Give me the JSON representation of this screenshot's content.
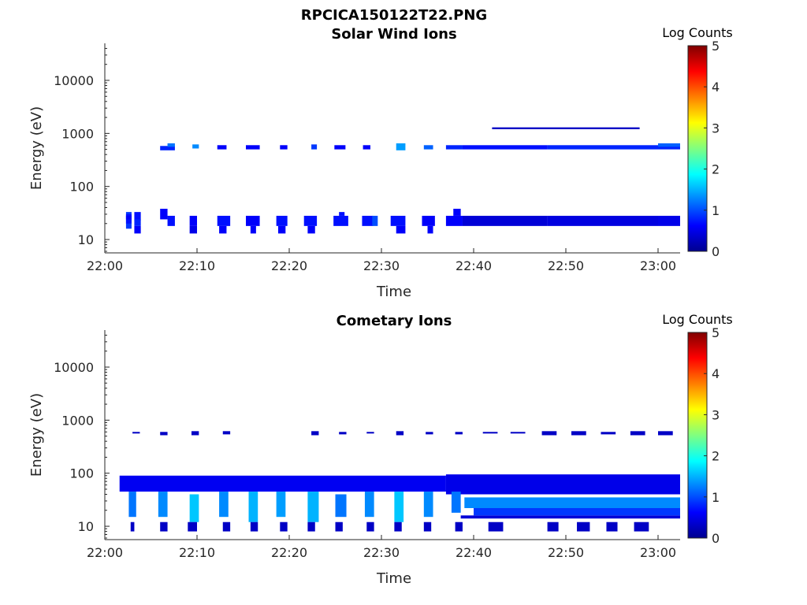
{
  "figure_title": "RPCICA150122T22.PNG",
  "chart_data": [
    {
      "type": "heatmap",
      "title": "Solar Wind Ions",
      "xlabel": "Time",
      "ylabel": "Energy (eV)",
      "yscale": "log",
      "ylim": [
        6,
        45000
      ],
      "xlim": [
        "22:00",
        "23:02"
      ],
      "xticks": [
        "22:00",
        "22:10",
        "22:20",
        "22:30",
        "22:40",
        "22:50",
        "23:00"
      ],
      "yticks": [
        "10",
        "100",
        "1000",
        "10000"
      ],
      "colorbar": {
        "label": "Log Counts",
        "min": 0,
        "max": 5,
        "ticks": [
          "0",
          "1",
          "2",
          "3",
          "4",
          "5"
        ],
        "colormap": "jet"
      },
      "cells": [
        [
          2.3,
          2.9,
          16,
          33,
          0.9
        ],
        [
          2.3,
          2.9,
          20,
          30,
          0.7
        ],
        [
          2.3,
          2.9,
          24,
          28,
          0.6
        ],
        [
          3.2,
          3.9,
          23,
          33,
          0.7
        ],
        [
          3.2,
          3.9,
          13,
          18,
          0.6
        ],
        [
          3.2,
          3.9,
          18,
          24,
          0.8
        ],
        [
          6.0,
          6.8,
          24,
          38,
          0.6
        ],
        [
          6.8,
          7.6,
          18,
          28,
          0.7
        ],
        [
          6.0,
          7.6,
          480,
          580,
          0.8
        ],
        [
          6.8,
          7.6,
          560,
          650,
          1.2
        ],
        [
          9.2,
          10.0,
          18,
          28,
          0.6
        ],
        [
          9.2,
          10.0,
          13,
          18,
          0.5
        ],
        [
          9.5,
          10.2,
          520,
          620,
          1.3
        ],
        [
          12.2,
          13.6,
          18,
          28,
          0.7
        ],
        [
          12.4,
          13.2,
          13,
          18,
          0.6
        ],
        [
          12.2,
          13.2,
          500,
          600,
          0.6
        ],
        [
          15.3,
          16.8,
          18,
          28,
          0.6
        ],
        [
          15.8,
          16.4,
          13,
          18,
          0.6
        ],
        [
          15.3,
          16.8,
          500,
          600,
          0.6
        ],
        [
          18.6,
          19.8,
          18,
          28,
          0.7
        ],
        [
          18.8,
          19.6,
          13,
          18,
          0.6
        ],
        [
          19.0,
          19.8,
          500,
          600,
          0.6
        ],
        [
          21.6,
          23.0,
          18,
          28,
          0.7
        ],
        [
          22.0,
          22.8,
          13,
          18,
          0.6
        ],
        [
          22.4,
          23.0,
          500,
          620,
          0.9
        ],
        [
          24.8,
          26.4,
          18,
          28,
          0.7
        ],
        [
          25.4,
          26.0,
          28,
          33,
          0.7
        ],
        [
          24.9,
          26.1,
          500,
          600,
          0.6
        ],
        [
          27.9,
          29.1,
          18,
          28,
          0.7
        ],
        [
          28.0,
          28.8,
          500,
          600,
          0.6
        ],
        [
          29.0,
          29.6,
          18,
          28,
          1.0
        ],
        [
          31.0,
          32.6,
          18,
          28,
          0.7
        ],
        [
          31.6,
          32.6,
          13,
          18,
          0.6
        ],
        [
          31.6,
          32.6,
          480,
          650,
          1.4
        ],
        [
          34.4,
          35.8,
          18,
          28,
          0.6
        ],
        [
          35.0,
          35.6,
          13,
          18,
          0.6
        ],
        [
          34.6,
          35.6,
          500,
          600,
          1.1
        ],
        [
          37.0,
          38.8,
          18,
          28,
          0.6
        ],
        [
          37.8,
          38.6,
          28,
          38,
          0.6
        ],
        [
          37.0,
          38.8,
          500,
          600,
          0.8
        ],
        [
          38.8,
          48.0,
          18,
          28,
          0.4
        ],
        [
          48.0,
          60.0,
          18,
          28,
          0.45
        ],
        [
          60.0,
          62.5,
          18,
          28,
          0.5
        ],
        [
          38.8,
          48.0,
          500,
          600,
          0.7
        ],
        [
          48.0,
          62.5,
          500,
          600,
          0.8
        ],
        [
          60.0,
          62.5,
          560,
          650,
          1.1
        ],
        [
          42.0,
          58.0,
          1200,
          1300,
          0.3
        ]
      ]
    },
    {
      "type": "heatmap",
      "title": "Cometary Ions",
      "xlabel": "Time",
      "ylabel": "Energy (eV)",
      "yscale": "log",
      "ylim": [
        6,
        45000
      ],
      "xlim": [
        "22:00",
        "23:02"
      ],
      "xticks": [
        "22:00",
        "22:10",
        "22:20",
        "22:30",
        "22:40",
        "22:50",
        "23:00"
      ],
      "yticks": [
        "10",
        "100",
        "1000",
        "10000"
      ],
      "colorbar": {
        "label": "Log Counts",
        "min": 0,
        "max": 5,
        "ticks": [
          "0",
          "1",
          "2",
          "3",
          "4",
          "5"
        ],
        "colormap": "jet"
      },
      "cells": [
        [
          1.6,
          37.0,
          45,
          90,
          0.55
        ],
        [
          37.0,
          62.5,
          40,
          95,
          0.5
        ],
        [
          2.6,
          3.4,
          15,
          45,
          1.2
        ],
        [
          5.8,
          6.8,
          15,
          45,
          1.3
        ],
        [
          9.2,
          10.2,
          12,
          40,
          1.6
        ],
        [
          12.4,
          13.4,
          15,
          45,
          1.3
        ],
        [
          15.6,
          16.6,
          12,
          45,
          1.5
        ],
        [
          18.6,
          19.6,
          15,
          45,
          1.4
        ],
        [
          22.0,
          23.2,
          12,
          45,
          1.5
        ],
        [
          25.0,
          26.2,
          15,
          40,
          1.2
        ],
        [
          28.2,
          29.2,
          15,
          45,
          1.3
        ],
        [
          31.4,
          32.4,
          12,
          45,
          1.6
        ],
        [
          34.6,
          35.6,
          15,
          45,
          1.3
        ],
        [
          37.6,
          38.6,
          18,
          45,
          1.2
        ],
        [
          38.6,
          62.5,
          14,
          16,
          0.4
        ],
        [
          39.0,
          62.5,
          22,
          35,
          1.3
        ],
        [
          40.0,
          62.5,
          16,
          22,
          0.9
        ],
        [
          2.8,
          3.2,
          8,
          12,
          0.3
        ],
        [
          6.0,
          6.8,
          8,
          12,
          0.3
        ],
        [
          9.0,
          10.0,
          8,
          12,
          0.3
        ],
        [
          12.8,
          13.6,
          8,
          12,
          0.3
        ],
        [
          15.8,
          16.6,
          8,
          12,
          0.3
        ],
        [
          19.0,
          19.8,
          8,
          12,
          0.3
        ],
        [
          22.0,
          22.8,
          8,
          12,
          0.3
        ],
        [
          25.0,
          25.8,
          8,
          12,
          0.3
        ],
        [
          28.4,
          29.2,
          8,
          12,
          0.3
        ],
        [
          31.4,
          32.2,
          8,
          12,
          0.3
        ],
        [
          34.6,
          35.4,
          8,
          12,
          0.3
        ],
        [
          38.0,
          38.8,
          8,
          12,
          0.3
        ],
        [
          41.6,
          43.2,
          8,
          12,
          0.3
        ],
        [
          48.0,
          49.2,
          8,
          12,
          0.3
        ],
        [
          51.2,
          52.6,
          8,
          12,
          0.3
        ],
        [
          54.4,
          55.6,
          8,
          12,
          0.3
        ],
        [
          57.4,
          59.0,
          8,
          12,
          0.3
        ],
        [
          3.0,
          3.8,
          560,
          600,
          0.3
        ],
        [
          6.0,
          6.8,
          520,
          600,
          0.3
        ],
        [
          9.4,
          10.2,
          520,
          620,
          0.3
        ],
        [
          12.8,
          13.6,
          540,
          620,
          0.3
        ],
        [
          22.4,
          23.2,
          520,
          620,
          0.3
        ],
        [
          25.4,
          26.2,
          540,
          600,
          0.3
        ],
        [
          28.4,
          29.2,
          560,
          600,
          0.3
        ],
        [
          31.6,
          32.4,
          520,
          620,
          0.3
        ],
        [
          34.8,
          35.6,
          540,
          600,
          0.3
        ],
        [
          38.0,
          38.8,
          540,
          600,
          0.3
        ],
        [
          41.0,
          42.6,
          560,
          600,
          0.3
        ],
        [
          44.0,
          45.6,
          560,
          600,
          0.3
        ],
        [
          47.4,
          49.0,
          520,
          620,
          0.3
        ],
        [
          50.6,
          52.2,
          520,
          620,
          0.3
        ],
        [
          53.8,
          55.4,
          540,
          600,
          0.3
        ],
        [
          57.0,
          58.6,
          520,
          620,
          0.3
        ],
        [
          60.0,
          61.6,
          520,
          620,
          0.3
        ]
      ]
    }
  ]
}
